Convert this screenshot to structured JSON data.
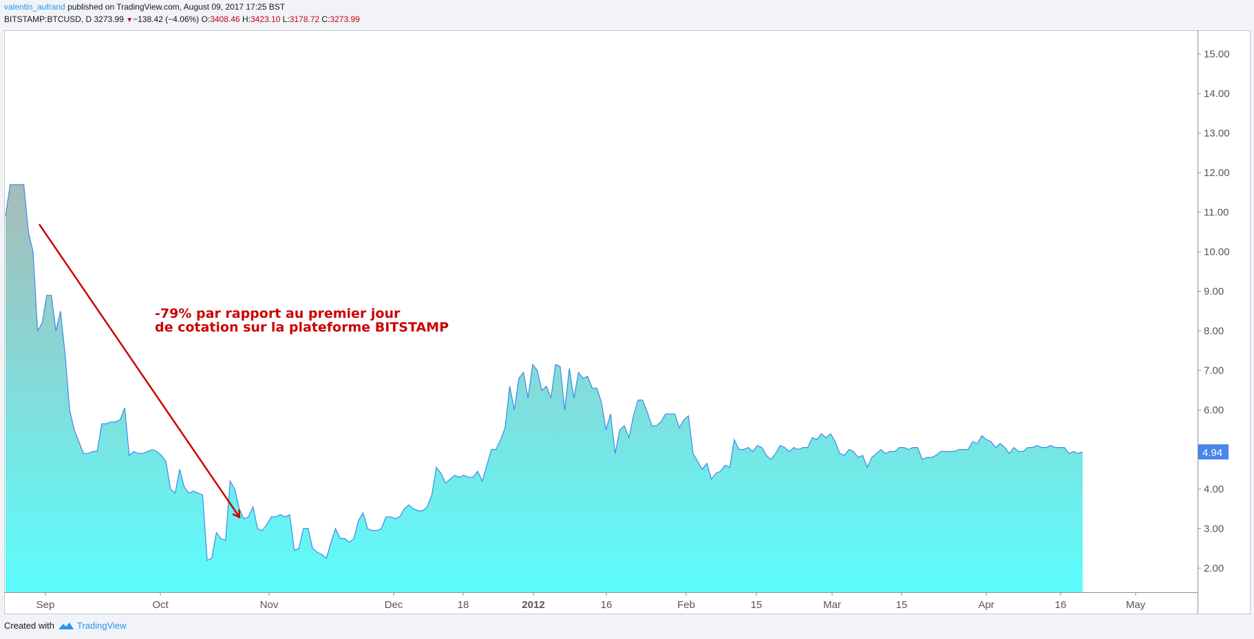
{
  "header": {
    "user": "valentin_aufrand",
    "published": "published on TradingView.com, August 09, 2017 17:25 BST"
  },
  "ticker": {
    "symbol": "BITSTAMP:BTCUSD, D",
    "price": "3273.99",
    "change_arrow": "▼",
    "change": "−138.42 (−4.06%)",
    "o_label": "O:",
    "o": "3408.46",
    "h_label": "H:",
    "h": "3423.10",
    "l_label": "L:",
    "l": "3178.72",
    "c_label": "C:",
    "c": "3273.99"
  },
  "footer": {
    "created_with": "Created with",
    "brand": "TradingView",
    "logo_icon": "tradingview-logo-icon"
  },
  "colors": {
    "line": "#3c88ea",
    "fill_top": "#a7bbb7",
    "fill_bottom": "#5cfdfd",
    "annotation": "#cc0000",
    "last_price_badge": "#4a86e8"
  },
  "chart_data": {
    "type": "area",
    "ylim": [
      1.5,
      15.5
    ],
    "yticks": [
      "15.00",
      "14.00",
      "13.00",
      "12.00",
      "11.00",
      "10.00",
      "9.00",
      "8.00",
      "7.00",
      "6.00",
      "5.00",
      "4.00",
      "3.00",
      "2.00"
    ],
    "xticks": [
      "Sep",
      "Oct",
      "Nov",
      "Dec",
      "18",
      "2012",
      "16",
      "Feb",
      "15",
      "Mar",
      "15",
      "Apr",
      "16",
      "May"
    ],
    "last_price": "4.94",
    "annotation": [
      "-79% par rapport au premier jour",
      "de cotation sur la plateforme BITSTAMP"
    ],
    "x_start": "2011-08-18",
    "y": [
      10.9,
      11.7,
      11.7,
      11.7,
      11.7,
      10.5,
      10.0,
      8.0,
      8.2,
      8.9,
      8.9,
      8.0,
      8.5,
      7.4,
      6.0,
      5.5,
      5.2,
      4.9,
      4.9,
      4.95,
      4.95,
      5.65,
      5.65,
      5.7,
      5.7,
      5.75,
      6.05,
      4.85,
      4.95,
      4.9,
      4.9,
      4.95,
      5.0,
      4.95,
      4.85,
      4.7,
      4.0,
      3.9,
      4.5,
      4.05,
      3.9,
      3.95,
      3.9,
      3.85,
      2.2,
      2.25,
      2.9,
      2.75,
      2.7,
      4.2,
      4.0,
      3.5,
      3.25,
      3.3,
      3.55,
      3.0,
      2.95,
      3.1,
      3.3,
      3.3,
      3.35,
      3.3,
      3.35,
      2.45,
      2.5,
      3.0,
      3.0,
      2.5,
      2.4,
      2.35,
      2.25,
      2.65,
      3.0,
      2.75,
      2.75,
      2.65,
      2.75,
      3.2,
      3.4,
      3.0,
      2.95,
      2.95,
      3.0,
      3.3,
      3.3,
      3.25,
      3.3,
      3.5,
      3.6,
      3.5,
      3.45,
      3.45,
      3.55,
      3.85,
      4.55,
      4.4,
      4.15,
      4.25,
      4.35,
      4.3,
      4.35,
      4.3,
      4.3,
      4.45,
      4.2,
      4.6,
      5.0,
      5.0,
      5.25,
      5.55,
      6.6,
      6.0,
      6.8,
      6.95,
      6.3,
      7.15,
      7.0,
      6.5,
      6.6,
      6.3,
      7.15,
      7.1,
      6.0,
      7.05,
      6.3,
      6.95,
      6.8,
      6.85,
      6.55,
      6.55,
      6.2,
      5.5,
      5.9,
      4.9,
      5.5,
      5.6,
      5.3,
      5.85,
      6.25,
      6.25,
      5.95,
      5.6,
      5.6,
      5.7,
      5.9,
      5.9,
      5.9,
      5.55,
      5.75,
      5.85,
      4.9,
      4.7,
      4.5,
      4.65,
      4.25,
      4.4,
      4.45,
      4.6,
      4.55,
      5.25,
      5.0,
      5.0,
      5.05,
      4.95,
      5.1,
      5.05,
      4.85,
      4.75,
      4.9,
      5.1,
      5.05,
      4.95,
      5.05,
      5.0,
      5.05,
      5.05,
      5.3,
      5.25,
      5.4,
      5.3,
      5.4,
      5.2,
      4.9,
      4.85,
      5.0,
      4.95,
      4.8,
      4.85,
      4.55,
      4.8,
      4.9,
      5.0,
      4.9,
      4.95,
      4.95,
      5.05,
      5.05,
      5.0,
      5.05,
      5.05,
      4.75,
      4.8,
      4.8,
      4.85,
      4.95,
      4.95,
      4.95,
      4.95,
      5.0,
      5.0,
      5.0,
      5.2,
      5.15,
      5.35,
      5.25,
      5.2,
      5.05,
      5.15,
      5.05,
      4.9,
      5.05,
      4.95,
      4.95,
      5.05,
      5.05,
      5.1,
      5.05,
      5.05,
      5.1,
      5.05,
      5.05,
      5.05,
      4.9,
      4.95,
      4.9,
      4.94
    ]
  }
}
